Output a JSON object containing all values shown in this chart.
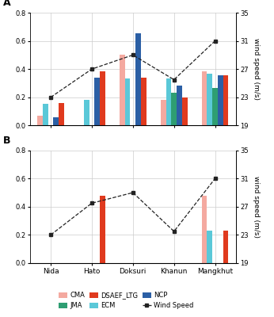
{
  "categories": [
    "Nida",
    "Hato",
    "Doksuri",
    "Khanun",
    "Mangkhut"
  ],
  "panel_A": {
    "CMA": [
      0.07,
      null,
      0.5,
      0.18,
      0.385
    ],
    "ECM": [
      0.155,
      0.18,
      0.335,
      0.335,
      0.365
    ],
    "JMA": [
      null,
      null,
      null,
      0.235,
      0.265
    ],
    "NCP": [
      0.06,
      0.34,
      0.655,
      0.285,
      0.355
    ],
    "DSAEF_LTG": [
      0.16,
      0.385,
      0.34,
      0.2,
      0.355
    ],
    "wind_speed": [
      23.0,
      27.0,
      29.0,
      25.5,
      31.0
    ]
  },
  "panel_B": {
    "CMA": [
      null,
      null,
      null,
      null,
      0.48
    ],
    "ECM": [
      null,
      null,
      null,
      null,
      0.23
    ],
    "JMA": [
      null,
      null,
      null,
      null,
      null
    ],
    "NCP": [
      null,
      null,
      null,
      null,
      null
    ],
    "DSAEF_LTG": [
      null,
      0.48,
      null,
      null,
      0.23
    ],
    "wind_speed": [
      23.0,
      27.5,
      29.0,
      23.5,
      31.0
    ]
  },
  "colors": {
    "CMA": "#F4A9A0",
    "ECM": "#5AC8D8",
    "JMA": "#2E9E72",
    "NCP": "#2B5FA5",
    "DSAEF_LTG": "#E03A1E"
  },
  "series_order": [
    "CMA",
    "ECM",
    "JMA",
    "NCP",
    "DSAEF_LTG"
  ],
  "bar_width": 0.13,
  "ylim_left": [
    0.0,
    0.8
  ],
  "ylim_right": [
    19,
    35
  ],
  "yticks_left": [
    0.0,
    0.2,
    0.4,
    0.6,
    0.8
  ],
  "yticks_right": [
    19,
    23,
    27,
    31,
    35
  ],
  "wind_color": "#222222",
  "grid_color": "#CCCCCC",
  "legend": {
    "row1": [
      "CMA",
      "JMA",
      "DSAEF_LTG"
    ],
    "row2": [
      "ECM",
      "NCP",
      "Wind Speed"
    ]
  }
}
